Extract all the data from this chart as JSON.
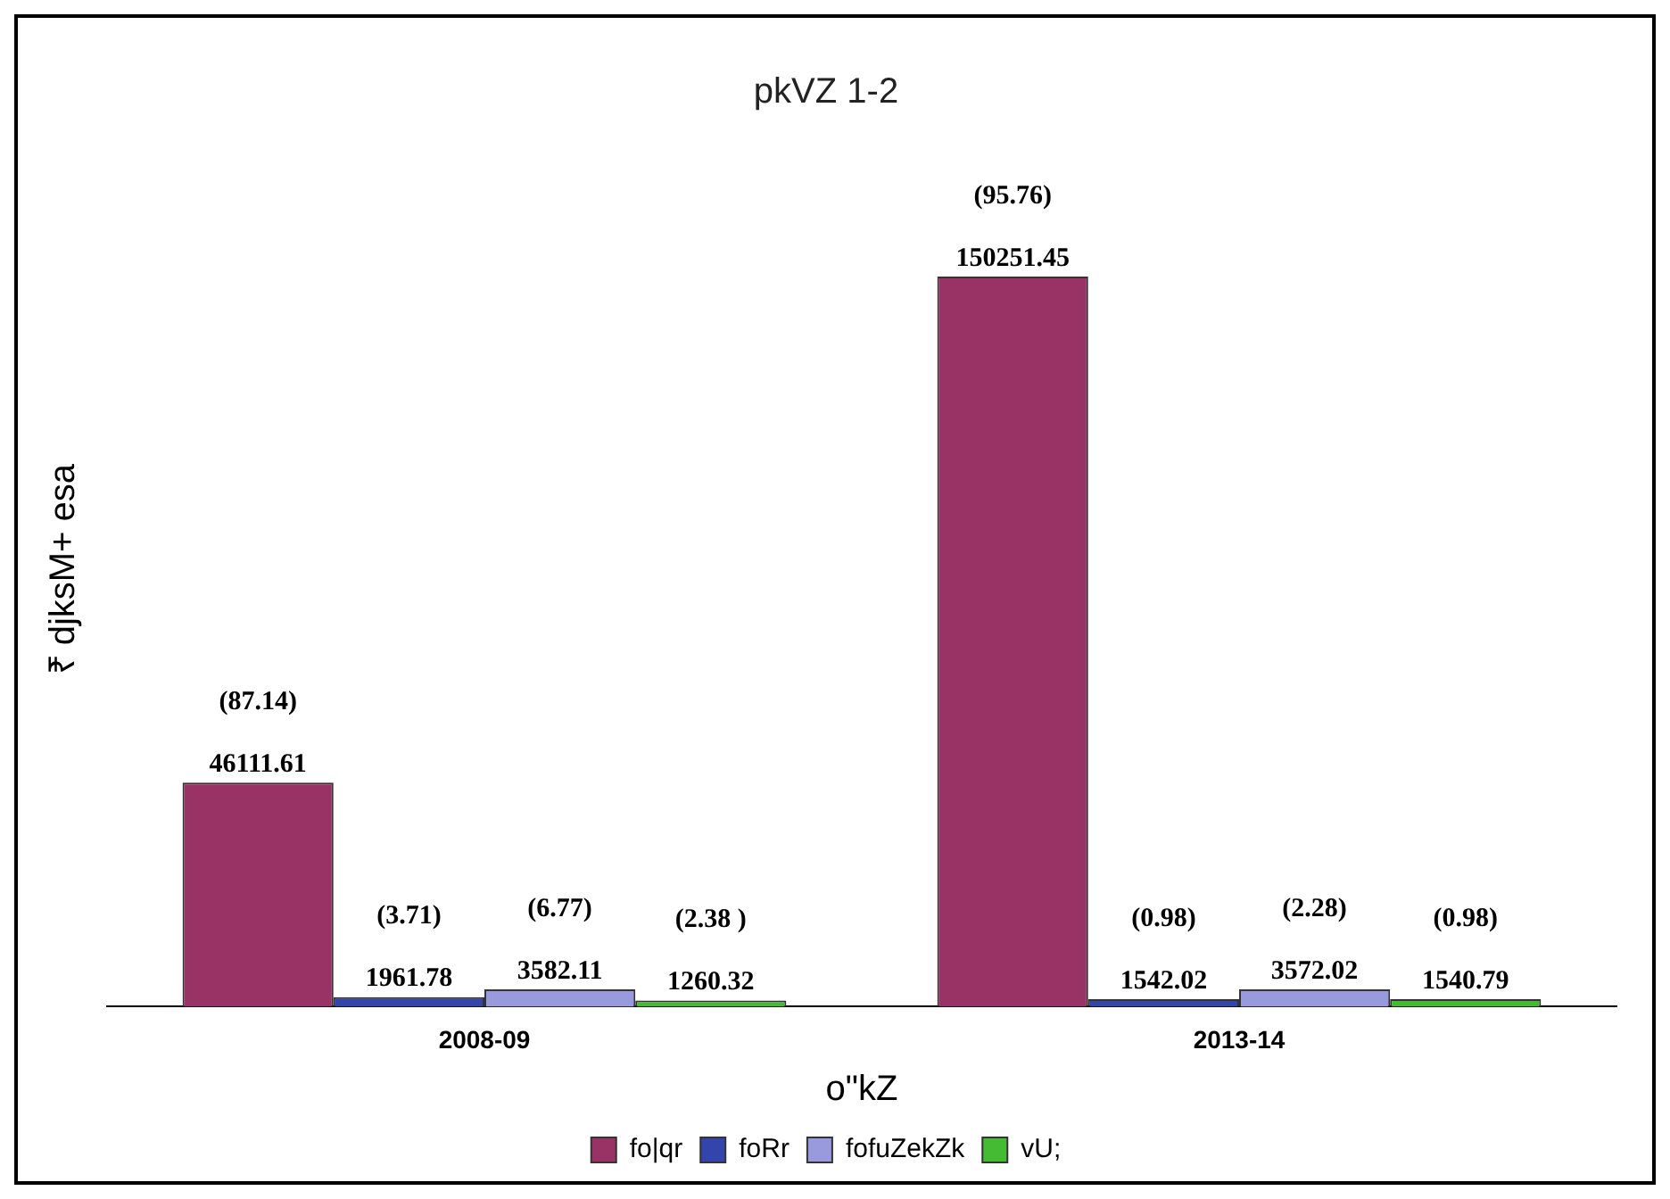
{
  "chart_data": {
    "type": "bar",
    "title": "pkVZ 1-2",
    "xlabel": "o\"kZ",
    "ylabel": "₹ djksM+ esa",
    "categories": [
      "2008-09",
      "2013-14"
    ],
    "series": [
      {
        "name": "fo|qr",
        "color": "#993366",
        "values": [
          46111.61,
          150251.45
        ]
      },
      {
        "name": "foRr",
        "color": "#3344aa",
        "values": [
          1961.78,
          1542.02
        ]
      },
      {
        "name": "fofuZekZk",
        "color": "#9999dd",
        "values": [
          3582.11,
          3572.02
        ]
      },
      {
        "name": "vU;",
        "color": "#44bb33",
        "values": [
          1260.32,
          1540.79
        ]
      }
    ],
    "data_labels": true,
    "annotations": [
      "(87.14)",
      "(95.76)",
      "(3.71)",
      "(0.98)",
      "(6.77)",
      "(2.28)",
      "(2.38 )",
      "(0.98)"
    ],
    "grid": false,
    "legend": "bottom"
  }
}
